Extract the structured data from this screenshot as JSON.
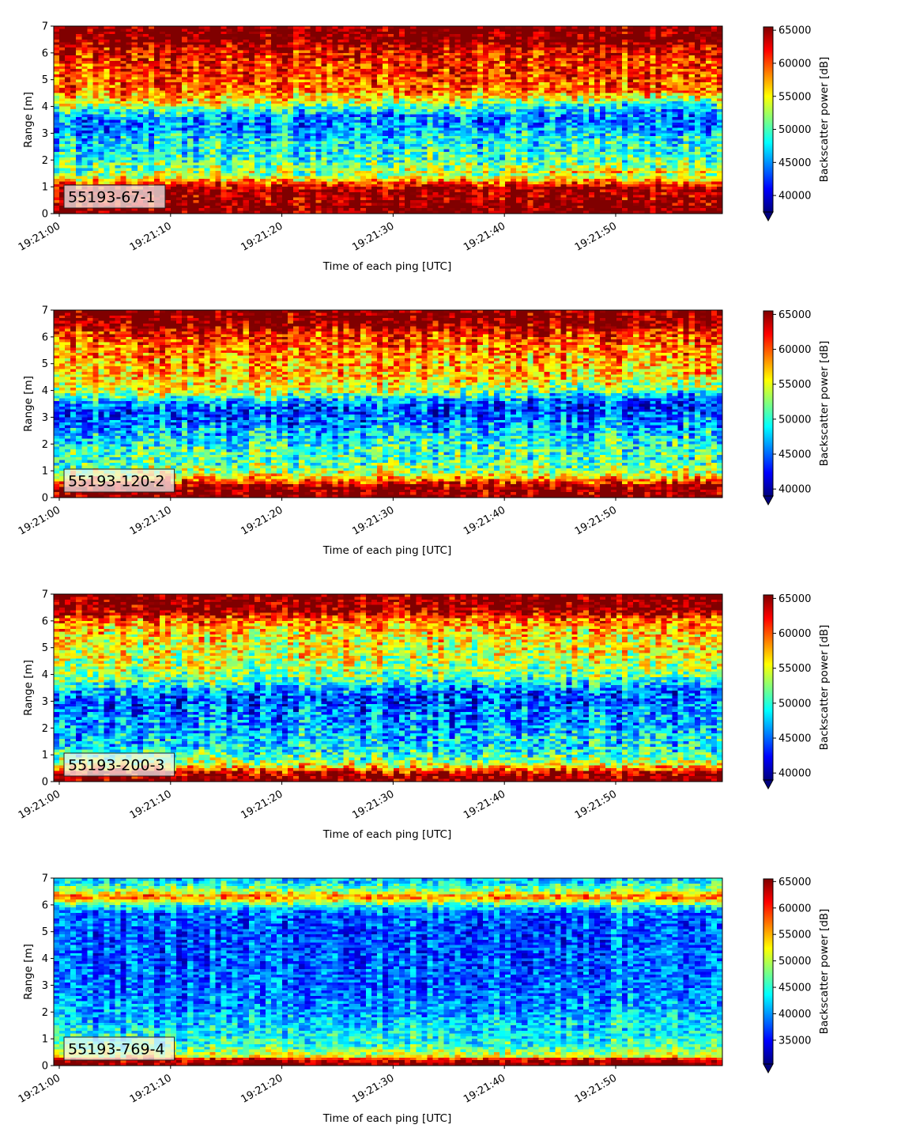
{
  "chart_data": [
    {
      "type": "heatmap",
      "label": "55193-67-1",
      "xlabel": "Time of each ping [UTC]",
      "ylabel": "Range [m]",
      "ylim": [
        0,
        7
      ],
      "x_ticks": [
        "19:21:00",
        "19:21:10",
        "19:21:20",
        "19:21:30",
        "19:21:40",
        "19:21:50"
      ],
      "y_ticks": [
        "0",
        "1",
        "2",
        "3",
        "4",
        "5",
        "6",
        "7"
      ],
      "colorbar": {
        "label": "Backscatter power [dB]",
        "vmin": 37500,
        "vmax": 65500,
        "ticks": [
          "40000",
          "45000",
          "50000",
          "55000",
          "60000",
          "65000"
        ],
        "extend": "min"
      },
      "profile": [
        {
          "range": 0.0,
          "value": 66000
        },
        {
          "range": 0.25,
          "value": 66000
        },
        {
          "range": 0.45,
          "value": 65000
        },
        {
          "range": 0.85,
          "value": 64500
        },
        {
          "range": 1.05,
          "value": 62000
        },
        {
          "range": 1.2,
          "value": 58000
        },
        {
          "range": 1.45,
          "value": 52000
        },
        {
          "range": 2.0,
          "value": 49000
        },
        {
          "range": 2.6,
          "value": 47500
        },
        {
          "range": 3.2,
          "value": 44500
        },
        {
          "range": 3.5,
          "value": 45000
        },
        {
          "range": 3.8,
          "value": 49000
        },
        {
          "range": 4.1,
          "value": 55000
        },
        {
          "range": 4.6,
          "value": 59000
        },
        {
          "range": 5.2,
          "value": 60500
        },
        {
          "range": 5.8,
          "value": 61500
        },
        {
          "range": 6.2,
          "value": 63000
        },
        {
          "range": 6.45,
          "value": 66000
        },
        {
          "range": 7.0,
          "value": 66000
        }
      ]
    },
    {
      "type": "heatmap",
      "label": "55193-120-2",
      "xlabel": "Time of each ping [UTC]",
      "ylabel": "Range [m]",
      "ylim": [
        0,
        7
      ],
      "x_ticks": [
        "19:21:00",
        "19:21:10",
        "19:21:20",
        "19:21:30",
        "19:21:40",
        "19:21:50"
      ],
      "y_ticks": [
        "0",
        "1",
        "2",
        "3",
        "4",
        "5",
        "6",
        "7"
      ],
      "colorbar": {
        "label": "Backscatter power [dB]",
        "vmin": 39000,
        "vmax": 65500,
        "ticks": [
          "40000",
          "45000",
          "50000",
          "55000",
          "60000",
          "65000"
        ],
        "extend": "min"
      },
      "profile": [
        {
          "range": 0.0,
          "value": 66000
        },
        {
          "range": 0.4,
          "value": 66000
        },
        {
          "range": 0.6,
          "value": 60000
        },
        {
          "range": 0.9,
          "value": 54000
        },
        {
          "range": 1.3,
          "value": 51000
        },
        {
          "range": 1.8,
          "value": 50000
        },
        {
          "range": 2.3,
          "value": 47500
        },
        {
          "range": 2.8,
          "value": 45000
        },
        {
          "range": 3.2,
          "value": 43500
        },
        {
          "range": 3.5,
          "value": 47000
        },
        {
          "range": 3.8,
          "value": 53000
        },
        {
          "range": 4.3,
          "value": 56500
        },
        {
          "range": 5.0,
          "value": 57500
        },
        {
          "range": 5.6,
          "value": 59000
        },
        {
          "range": 6.2,
          "value": 62000
        },
        {
          "range": 6.5,
          "value": 66000
        },
        {
          "range": 7.0,
          "value": 66000
        }
      ]
    },
    {
      "type": "heatmap",
      "label": "55193-200-3",
      "xlabel": "Time of each ping [UTC]",
      "ylabel": "Range [m]",
      "ylim": [
        0,
        7
      ],
      "x_ticks": [
        "19:21:00",
        "19:21:10",
        "19:21:20",
        "19:21:30",
        "19:21:40",
        "19:21:50"
      ],
      "y_ticks": [
        "0",
        "1",
        "2",
        "3",
        "4",
        "5",
        "6",
        "7"
      ],
      "colorbar": {
        "label": "Backscatter power [dB]",
        "vmin": 39000,
        "vmax": 65500,
        "ticks": [
          "40000",
          "45000",
          "50000",
          "55000",
          "60000",
          "65000"
        ],
        "extend": "min"
      },
      "profile": [
        {
          "range": 0.0,
          "value": 66000
        },
        {
          "range": 0.3,
          "value": 65000
        },
        {
          "range": 0.5,
          "value": 58000
        },
        {
          "range": 0.8,
          "value": 52000
        },
        {
          "range": 1.3,
          "value": 48500
        },
        {
          "range": 1.9,
          "value": 46500
        },
        {
          "range": 2.5,
          "value": 45500
        },
        {
          "range": 3.0,
          "value": 44000
        },
        {
          "range": 3.3,
          "value": 46500
        },
        {
          "range": 3.7,
          "value": 51500
        },
        {
          "range": 4.3,
          "value": 54000
        },
        {
          "range": 5.0,
          "value": 55000
        },
        {
          "range": 5.6,
          "value": 56500
        },
        {
          "range": 6.1,
          "value": 60000
        },
        {
          "range": 6.4,
          "value": 65500
        },
        {
          "range": 7.0,
          "value": 66000
        }
      ]
    },
    {
      "type": "heatmap",
      "label": "55193-769-4",
      "xlabel": "Time of each ping [UTC]",
      "ylabel": "Range [m]",
      "ylim": [
        0,
        7
      ],
      "x_ticks": [
        "19:21:00",
        "19:21:10",
        "19:21:20",
        "19:21:30",
        "19:21:40",
        "19:21:50"
      ],
      "y_ticks": [
        "0",
        "1",
        "2",
        "3",
        "4",
        "5",
        "6",
        "7"
      ],
      "colorbar": {
        "label": "Backscatter power [dB]",
        "vmin": 30500,
        "vmax": 65500,
        "ticks": [
          "35000",
          "40000",
          "45000",
          "50000",
          "55000",
          "60000",
          "65000"
        ],
        "extend": "min"
      },
      "profile": [
        {
          "range": 0.0,
          "value": 66000
        },
        {
          "range": 0.2,
          "value": 64000
        },
        {
          "range": 0.35,
          "value": 52000
        },
        {
          "range": 0.7,
          "value": 46000
        },
        {
          "range": 1.3,
          "value": 43000
        },
        {
          "range": 2.0,
          "value": 40000
        },
        {
          "range": 3.0,
          "value": 38500
        },
        {
          "range": 4.0,
          "value": 38000
        },
        {
          "range": 5.0,
          "value": 37500
        },
        {
          "range": 5.7,
          "value": 38500
        },
        {
          "range": 6.0,
          "value": 45000
        },
        {
          "range": 6.3,
          "value": 58000
        },
        {
          "range": 6.5,
          "value": 50000
        },
        {
          "range": 6.8,
          "value": 44000
        },
        {
          "range": 7.0,
          "value": 42000
        }
      ]
    }
  ]
}
